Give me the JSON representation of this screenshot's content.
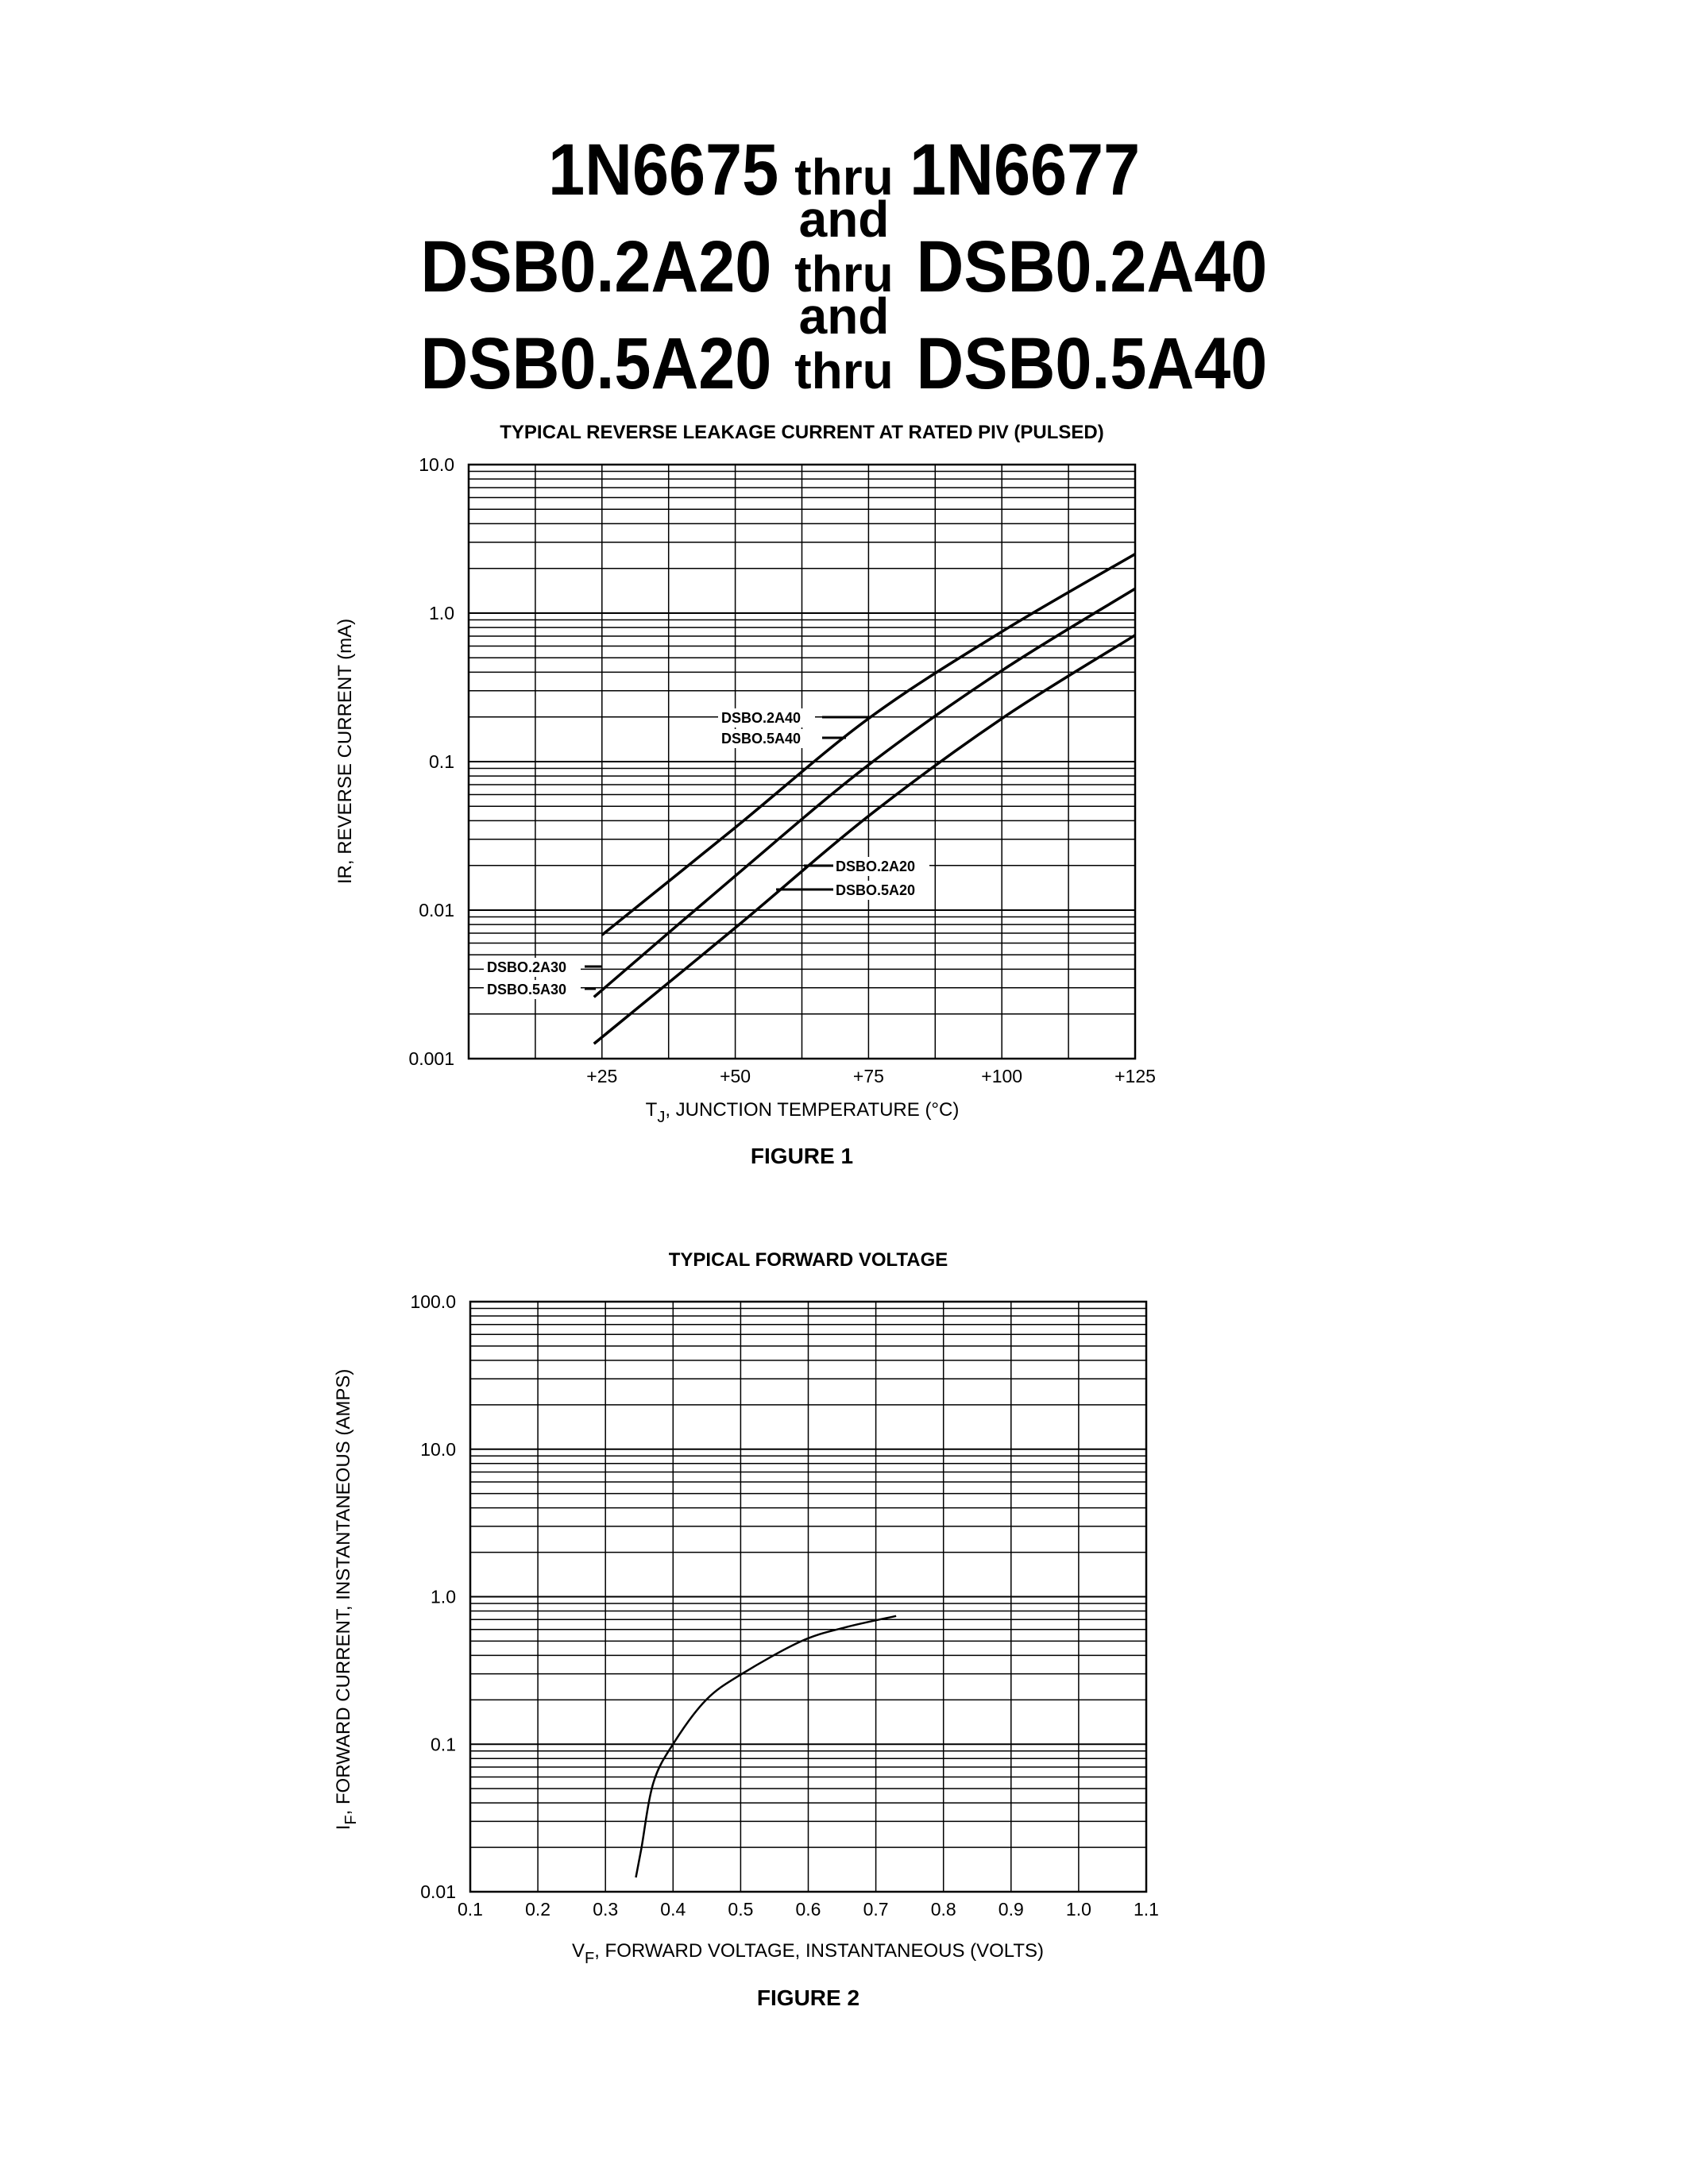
{
  "header": {
    "line1": {
      "a": "1N6675",
      "thru": "thru",
      "b": "1N6677"
    },
    "and1": "and",
    "line2": {
      "a": "DSB0.2A20",
      "thru": "thru",
      "b": "DSB0.2A40"
    },
    "and2": "and",
    "line3": {
      "a": "DSB0.5A20",
      "thru": "thru",
      "b": "DSB0.5A40"
    }
  },
  "chart_data": [
    {
      "type": "line",
      "title": "TYPICAL REVERSE LEAKAGE CURRENT AT RATED PIV (PULSED)",
      "xlabel_sub": "J",
      "xlabel_prefix": "T",
      "xlabel": ", JUNCTION TEMPERATURE (°C)",
      "ylabel": "IR, REVERSE CURRENT (mA)",
      "caption": "FIGURE 1",
      "xlim": [
        0,
        125
      ],
      "ylim": [
        0.001,
        10
      ],
      "yscale": "log",
      "grid": true,
      "xticks": [
        "+25",
        "+50",
        "+75",
        "+100",
        "+125"
      ],
      "xtick_values": [
        25,
        50,
        75,
        100,
        125
      ],
      "yticks": [
        "10.0",
        "1.0",
        "0.1",
        "0.01",
        "0.001"
      ],
      "ytick_values": [
        10,
        1,
        0.1,
        0.01,
        0.001
      ],
      "labels": [
        "DSBO.2A40",
        "DSBO.5A40",
        "DSBO.2A20",
        "DSBO.5A20",
        "DSBO.2A30",
        "DSBO.5A30"
      ],
      "series": [
        {
          "x": [
            25,
            50,
            75,
            100,
            125
          ],
          "y": [
            0.0068,
            0.036,
            0.195,
            0.75,
            2.5
          ]
        },
        {
          "x": [
            23.5,
            50,
            75,
            100,
            125
          ],
          "y": [
            0.0026,
            0.017,
            0.095,
            0.41,
            1.46
          ]
        },
        {
          "x": [
            23.5,
            50,
            75,
            100,
            125
          ],
          "y": [
            0.00126,
            0.0076,
            0.043,
            0.195,
            0.71
          ]
        }
      ]
    },
    {
      "type": "line",
      "title": "TYPICAL FORWARD VOLTAGE",
      "ylabel_prefix": "I",
      "ylabel_sub": "F",
      "ylabel": ", FORWARD CURRENT, INSTANTANEOUS (AMPS)",
      "xlabel_prefix": "V",
      "xlabel_sub": "F",
      "xlabel": ", FORWARD VOLTAGE, INSTANTANEOUS (VOLTS)",
      "caption": "FIGURE 2",
      "xlim": [
        0.1,
        1.1
      ],
      "ylim": [
        0.01,
        100
      ],
      "yscale": "log",
      "grid": true,
      "xticks": [
        "0.1",
        "0.2",
        "0.3",
        "0.4",
        "0.5",
        "0.6",
        "0.7",
        "0.8",
        "0.9",
        "1.0",
        "1.1"
      ],
      "xtick_values": [
        0.1,
        0.2,
        0.3,
        0.4,
        0.5,
        0.6,
        0.7,
        0.8,
        0.9,
        1.0,
        1.1
      ],
      "yticks": [
        "100.0",
        "10.0",
        "1.0",
        "0.1",
        "0.01"
      ],
      "ytick_values": [
        100,
        10,
        1,
        0.1,
        0.01
      ],
      "series": [
        {
          "x": [
            0.345,
            0.353,
            0.371,
            0.402,
            0.449,
            0.502,
            0.59,
            0.655,
            0.73
          ],
          "y": [
            0.0125,
            0.0195,
            0.055,
            0.1035,
            0.2,
            0.3,
            0.5,
            0.62,
            0.74
          ]
        }
      ]
    }
  ]
}
